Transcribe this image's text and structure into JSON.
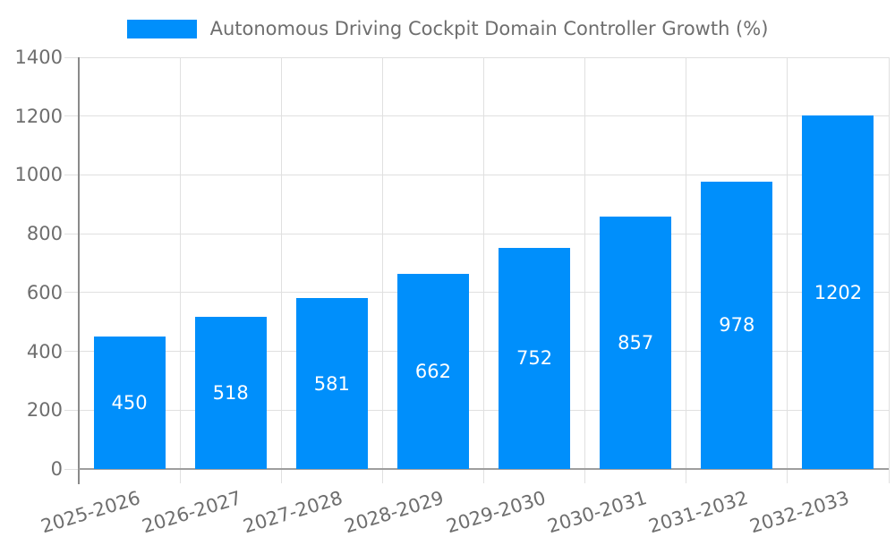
{
  "legend": {
    "label": "Autonomous Driving Cockpit Domain Controller Growth (%)"
  },
  "colors": {
    "bar": "#008FFB",
    "grid": "#e0e0e0",
    "axis": "#9e9e9e",
    "axis_dark": "#8a8a8a",
    "text": "#6e6e6e",
    "data_label": "#ffffff"
  },
  "chart_data": {
    "type": "bar",
    "title": "Autonomous Driving Cockpit Domain Controller Growth (%)",
    "categories": [
      "2025-2026",
      "2026-2027",
      "2027-2028",
      "2028-2029",
      "2029-2030",
      "2030-2031",
      "2031-2032",
      "2032-2033"
    ],
    "values": [
      450,
      518,
      581,
      662,
      752,
      857,
      978,
      1202
    ],
    "data_labels": [
      "450",
      "518",
      "581",
      "662",
      "752",
      "857",
      "978",
      "1202"
    ],
    "xlabel": "",
    "ylabel": "",
    "ylim": [
      0,
      1400
    ],
    "yticks": [
      0,
      200,
      400,
      600,
      800,
      1000,
      1200,
      1400
    ],
    "ytick_labels": [
      "0",
      "200",
      "400",
      "600",
      "800",
      "1000",
      "1200",
      "1400"
    ],
    "grid": "on",
    "legend_position": "top-center",
    "data_label_position": "inside-center"
  }
}
